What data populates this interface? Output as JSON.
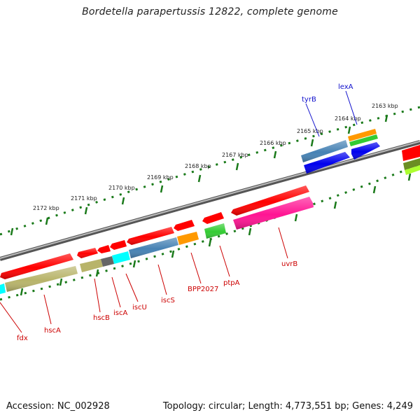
{
  "title": "Bordetella parapertussis 12822, complete genome",
  "footer": {
    "accession": "Accession: NC_002928",
    "summary": "Topology: circular; Length: 4,773,551 bp; Genes: 4,249"
  },
  "ticks": [
    "2172 kbp",
    "2171 kbp",
    "2170 kbp",
    "2169 kbp",
    "2168 kbp",
    "2167 kbp",
    "2166 kbp",
    "2165 kbp",
    "2164 kbp",
    "2163 kbp"
  ],
  "genes_top": [
    {
      "name": "tyrB",
      "color": "#1010cc"
    },
    {
      "name": "lexA",
      "color": "#1010cc"
    }
  ],
  "genes_bottom": [
    {
      "name": "fdx",
      "color": "#cc0000"
    },
    {
      "name": "hscA",
      "color": "#cc0000"
    },
    {
      "name": "hscB",
      "color": "#cc0000"
    },
    {
      "name": "iscA",
      "color": "#cc0000"
    },
    {
      "name": "iscU",
      "color": "#cc0000"
    },
    {
      "name": "iscS",
      "color": "#cc0000"
    },
    {
      "name": "BPP2027",
      "color": "#cc0000"
    },
    {
      "name": "ptpA",
      "color": "#cc0000"
    },
    {
      "name": "uvrB",
      "color": "#cc0000"
    }
  ],
  "colors": {
    "backbone": "#7a7a7a",
    "tick_green": "#1a7a1a",
    "cds_red": "#ff0000",
    "khaki": "#b8b46a",
    "steelblue": "#4682b4",
    "cyan": "#00ffff",
    "orange": "#ff9900",
    "green": "#33cc33",
    "magenta": "#ff1493",
    "blue": "#0000ee",
    "gray": "#666666",
    "olive": "#6b8e23",
    "yellowgreen": "#adff2f"
  }
}
